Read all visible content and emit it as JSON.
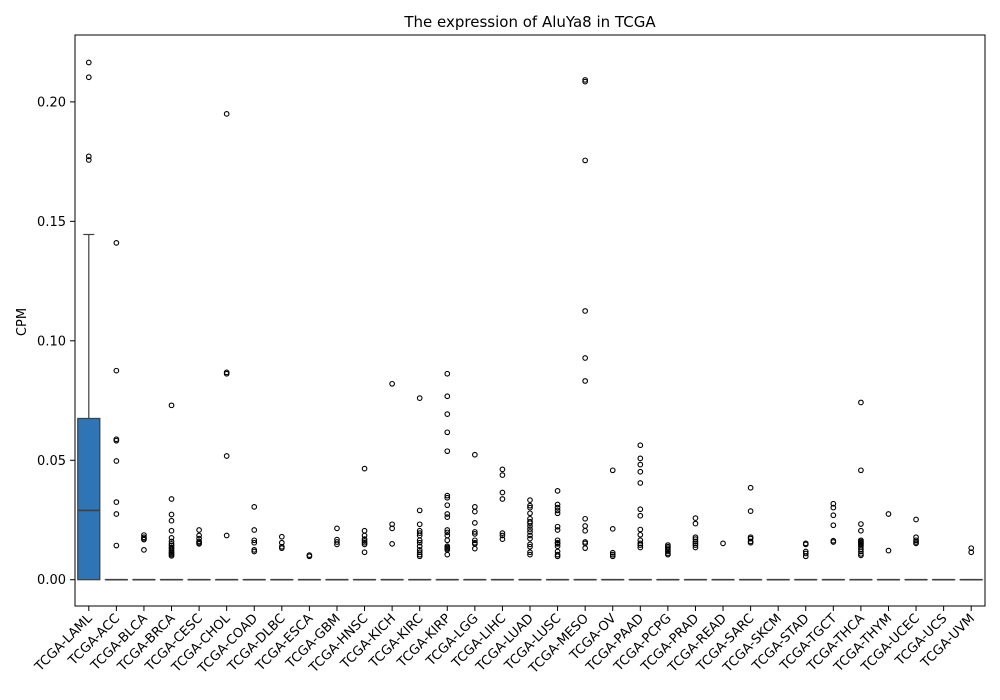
{
  "chart_data": {
    "type": "box",
    "title": "The expression of AluYa8 in TCGA",
    "xlabel": "",
    "ylabel": "CPM",
    "ylim": [
      -0.011,
      0.228
    ],
    "yticks": [
      "0.00",
      "0.05",
      "0.10",
      "0.15",
      "0.20"
    ],
    "yticks_values": [
      0,
      0.05,
      0.1,
      0.15,
      0.2
    ],
    "grid": false,
    "legend": "none",
    "box_color": "#2f75b5",
    "categories": [
      "TCGA-LAML",
      "TCGA-ACC",
      "TCGA-BLCA",
      "TCGA-BRCA",
      "TCGA-CESC",
      "TCGA-CHOL",
      "TCGA-COAD",
      "TCGA-DLBC",
      "TCGA-ESCA",
      "TCGA-GBM",
      "TCGA-HNSC",
      "TCGA-KICH",
      "TCGA-KIRC",
      "TCGA-KIRP",
      "TCGA-LGG",
      "TCGA-LIHC",
      "TCGA-LUAD",
      "TCGA-LUSC",
      "TCGA-MESO",
      "TCGA-OV",
      "TCGA-PAAD",
      "TCGA-PCPG",
      "TCGA-PRAD",
      "TCGA-READ",
      "TCGA-SARC",
      "TCGA-SKCM",
      "TCGA-STAD",
      "TCGA-TGCT",
      "TCGA-THCA",
      "TCGA-THYM",
      "TCGA-UCEC",
      "TCGA-UCS",
      "TCGA-UVM"
    ],
    "boxes": [
      {
        "q1": 0,
        "median": 0.029,
        "q3": 0.0675,
        "whisker_low": 0,
        "whisker_high": 0.1445,
        "outliers": [
          0.2165,
          0.2103,
          0.1772,
          0.1757
        ]
      },
      {
        "q1": 0,
        "median": 0,
        "q3": 0,
        "whisker_low": 0,
        "whisker_high": 0,
        "outliers": [
          0.141,
          0.0875,
          0.0588,
          0.0582,
          0.0497,
          0.0325,
          0.0275,
          0.0143
        ]
      },
      {
        "q1": 0,
        "median": 0,
        "q3": 0,
        "whisker_low": 0,
        "whisker_high": 0,
        "outliers": [
          0.0187,
          0.0178,
          0.0172,
          0.0168,
          0.0125
        ]
      },
      {
        "q1": 0,
        "median": 0,
        "q3": 0,
        "whisker_low": 0,
        "whisker_high": 0,
        "outliers": [
          0.073,
          0.0338,
          0.0273,
          0.0247,
          0.0205,
          0.0175,
          0.016,
          0.015,
          0.0143,
          0.0135,
          0.013,
          0.0122,
          0.0115,
          0.011,
          0.0105,
          0.01
        ]
      },
      {
        "q1": 0,
        "median": 0,
        "q3": 0,
        "whisker_low": 0,
        "whisker_high": 0,
        "outliers": [
          0.0208,
          0.0185,
          0.0172,
          0.016,
          0.0155,
          0.015
        ]
      },
      {
        "q1": 0,
        "median": 0,
        "q3": 0,
        "whisker_low": 0,
        "whisker_high": 0,
        "outliers": [
          0.195,
          0.0868,
          0.0862,
          0.0518,
          0.0185
        ]
      },
      {
        "q1": 0,
        "median": 0,
        "q3": 0,
        "whisker_low": 0,
        "whisker_high": 0,
        "outliers": [
          0.0305,
          0.0208,
          0.0165,
          0.0155,
          0.0125,
          0.0118
        ]
      },
      {
        "q1": 0,
        "median": 0,
        "q3": 0,
        "whisker_low": 0,
        "whisker_high": 0,
        "outliers": [
          0.018,
          0.0155,
          0.0138,
          0.0132
        ]
      },
      {
        "q1": 0,
        "median": 0,
        "q3": 0,
        "whisker_low": 0,
        "whisker_high": 0,
        "outliers": [
          0.0103,
          0.0098
        ]
      },
      {
        "q1": 0,
        "median": 0,
        "q3": 0,
        "whisker_low": 0,
        "whisker_high": 0,
        "outliers": [
          0.0215,
          0.0168,
          0.0158,
          0.0148
        ]
      },
      {
        "q1": 0,
        "median": 0,
        "q3": 0,
        "whisker_low": 0,
        "whisker_high": 0,
        "outliers": [
          0.0465,
          0.0205,
          0.0185,
          0.017,
          0.0162,
          0.0155,
          0.0148,
          0.0115
        ]
      },
      {
        "q1": 0,
        "median": 0,
        "q3": 0,
        "whisker_low": 0,
        "whisker_high": 0,
        "outliers": [
          0.082,
          0.0232,
          0.0215,
          0.015
        ]
      },
      {
        "q1": 0,
        "median": 0,
        "q3": 0,
        "whisker_low": 0,
        "whisker_high": 0,
        "outliers": [
          0.076,
          0.029,
          0.0232,
          0.0205,
          0.0195,
          0.0185,
          0.0165,
          0.0155,
          0.014,
          0.0125,
          0.0115,
          0.0105,
          0.0098
        ]
      },
      {
        "q1": 0,
        "median": 0,
        "q3": 0,
        "whisker_low": 0,
        "whisker_high": 0,
        "outliers": [
          0.0862,
          0.0768,
          0.0693,
          0.0617,
          0.0538,
          0.0352,
          0.0343,
          0.0312,
          0.0275,
          0.0262,
          0.0208,
          0.0198,
          0.0185,
          0.0165,
          0.014,
          0.0135,
          0.013,
          0.0125,
          0.0105
        ]
      },
      {
        "q1": 0,
        "median": 0,
        "q3": 0,
        "whisker_low": 0,
        "whisker_high": 0,
        "outliers": [
          0.0523,
          0.0305,
          0.0285,
          0.0238,
          0.02,
          0.0192,
          0.0165,
          0.0155,
          0.015,
          0.013
        ]
      },
      {
        "q1": 0,
        "median": 0,
        "q3": 0,
        "whisker_low": 0,
        "whisker_high": 0,
        "outliers": [
          0.0462,
          0.0438,
          0.0365,
          0.0338,
          0.0195,
          0.0185,
          0.017
        ]
      },
      {
        "q1": 0,
        "median": 0,
        "q3": 0,
        "whisker_low": 0,
        "whisker_high": 0,
        "outliers": [
          0.0333,
          0.031,
          0.0302,
          0.0278,
          0.0255,
          0.0243,
          0.0237,
          0.0225,
          0.0212,
          0.02,
          0.0185,
          0.0172,
          0.0148,
          0.0138,
          0.0115,
          0.0105
        ]
      },
      {
        "q1": 0,
        "median": 0,
        "q3": 0,
        "whisker_low": 0,
        "whisker_high": 0,
        "outliers": [
          0.0372,
          0.0315,
          0.0302,
          0.029,
          0.0278,
          0.0222,
          0.0208,
          0.0165,
          0.0155,
          0.015,
          0.014,
          0.0118,
          0.0105,
          0.0098
        ]
      },
      {
        "q1": 0,
        "median": 0,
        "q3": 0,
        "whisker_low": 0,
        "whisker_high": 0,
        "outliers": [
          0.2092,
          0.2085,
          0.1755,
          0.1125,
          0.0928,
          0.0832,
          0.0255,
          0.0225,
          0.0205,
          0.0158,
          0.0152,
          0.0132
        ]
      },
      {
        "q1": 0,
        "median": 0,
        "q3": 0,
        "whisker_low": 0,
        "whisker_high": 0,
        "outliers": [
          0.0458,
          0.0213,
          0.0113,
          0.0105,
          0.0098
        ]
      },
      {
        "q1": 0,
        "median": 0,
        "q3": 0,
        "whisker_low": 0,
        "whisker_high": 0,
        "outliers": [
          0.0563,
          0.0508,
          0.0482,
          0.0452,
          0.0405,
          0.0295,
          0.0268,
          0.021,
          0.0188,
          0.0165,
          0.0152,
          0.0145,
          0.0135
        ]
      },
      {
        "q1": 0,
        "median": 0,
        "q3": 0,
        "whisker_low": 0,
        "whisker_high": 0,
        "outliers": [
          0.0145,
          0.0138,
          0.0132,
          0.0125,
          0.0118,
          0.011,
          0.0105
        ]
      },
      {
        "q1": 0,
        "median": 0,
        "q3": 0,
        "whisker_low": 0,
        "whisker_high": 0,
        "outliers": [
          0.0258,
          0.0235,
          0.0178,
          0.017,
          0.016,
          0.0152,
          0.0145,
          0.0135
        ]
      },
      {
        "q1": 0,
        "median": 0,
        "q3": 0,
        "whisker_low": 0,
        "whisker_high": 0,
        "outliers": [
          0.0152
        ]
      },
      {
        "q1": 0,
        "median": 0,
        "q3": 0,
        "whisker_low": 0,
        "whisker_high": 0,
        "outliers": [
          0.0385,
          0.0287,
          0.0178,
          0.0172,
          0.016,
          0.0155
        ]
      },
      {
        "q1": 0,
        "median": 0,
        "q3": 0,
        "whisker_low": 0,
        "whisker_high": 0,
        "outliers": []
      },
      {
        "q1": 0,
        "median": 0,
        "q3": 0,
        "whisker_low": 0,
        "whisker_high": 0,
        "outliers": [
          0.0152,
          0.0148,
          0.0118,
          0.011,
          0.0098
        ]
      },
      {
        "q1": 0,
        "median": 0,
        "q3": 0,
        "whisker_low": 0,
        "whisker_high": 0,
        "outliers": [
          0.0318,
          0.0302,
          0.027,
          0.0228,
          0.0163,
          0.0158
        ]
      },
      {
        "q1": 0,
        "median": 0,
        "q3": 0,
        "whisker_low": 0,
        "whisker_high": 0,
        "outliers": [
          0.0742,
          0.0458,
          0.0233,
          0.0205,
          0.0165,
          0.016,
          0.0155,
          0.015,
          0.0145,
          0.0138,
          0.0128,
          0.0118,
          0.0108,
          0.0102
        ]
      },
      {
        "q1": 0,
        "median": 0,
        "q3": 0,
        "whisker_low": 0,
        "whisker_high": 0,
        "outliers": [
          0.0275,
          0.0122
        ]
      },
      {
        "q1": 0,
        "median": 0,
        "q3": 0,
        "whisker_low": 0,
        "whisker_high": 0,
        "outliers": [
          0.0252,
          0.0178,
          0.0165,
          0.0158,
          0.0152
        ]
      },
      {
        "q1": 0,
        "median": 0,
        "q3": 0,
        "whisker_low": 0,
        "whisker_high": 0,
        "outliers": []
      },
      {
        "q1": 0,
        "median": 0,
        "q3": 0,
        "whisker_low": 0,
        "whisker_high": 0,
        "outliers": [
          0.0132,
          0.0115
        ]
      }
    ]
  }
}
